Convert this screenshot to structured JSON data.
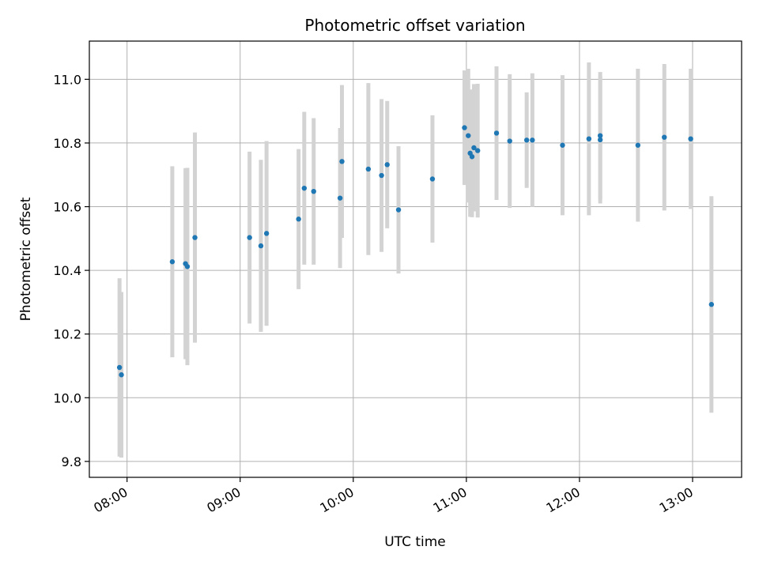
{
  "chart_data": {
    "type": "scatter",
    "title": "Photometric offset variation",
    "xlabel": "UTC time",
    "ylabel": "Photometric offset",
    "x_ticks": [
      "08:00",
      "09:00",
      "10:00",
      "11:00",
      "12:00",
      "13:00"
    ],
    "y_ticks": [
      "9.8",
      "10.0",
      "10.2",
      "10.4",
      "10.6",
      "10.8",
      "11.0"
    ],
    "xlim": [
      "07:40",
      "13:26"
    ],
    "ylim": [
      9.75,
      11.12
    ],
    "grid": true,
    "colors": {
      "points": "#1f77b4",
      "errorbars": "#d3d3d3",
      "grid": "#b0b0b0"
    },
    "points": [
      {
        "x": "07:56",
        "y": 10.095,
        "err": 0.28
      },
      {
        "x": "07:57",
        "y": 10.072,
        "err": 0.26
      },
      {
        "x": "08:24",
        "y": 10.427,
        "err": 0.3
      },
      {
        "x": "08:31",
        "y": 10.421,
        "err": 0.3
      },
      {
        "x": "08:32",
        "y": 10.412,
        "err": 0.31
      },
      {
        "x": "08:36",
        "y": 10.503,
        "err": 0.33
      },
      {
        "x": "09:05",
        "y": 10.503,
        "err": 0.27
      },
      {
        "x": "09:11",
        "y": 10.477,
        "err": 0.27
      },
      {
        "x": "09:14",
        "y": 10.516,
        "err": 0.29
      },
      {
        "x": "09:31",
        "y": 10.561,
        "err": 0.22
      },
      {
        "x": "09:34",
        "y": 10.658,
        "err": 0.24
      },
      {
        "x": "09:39",
        "y": 10.648,
        "err": 0.23
      },
      {
        "x": "09:53",
        "y": 10.627,
        "err": 0.22
      },
      {
        "x": "09:54",
        "y": 10.742,
        "err": 0.24
      },
      {
        "x": "10:08",
        "y": 10.718,
        "err": 0.27
      },
      {
        "x": "10:15",
        "y": 10.698,
        "err": 0.24
      },
      {
        "x": "10:18",
        "y": 10.732,
        "err": 0.2
      },
      {
        "x": "10:24",
        "y": 10.59,
        "err": 0.2
      },
      {
        "x": "10:42",
        "y": 10.687,
        "err": 0.2
      },
      {
        "x": "10:59",
        "y": 10.848,
        "err": 0.18
      },
      {
        "x": "11:01",
        "y": 10.823,
        "err": 0.21
      },
      {
        "x": "11:02",
        "y": 10.768,
        "err": 0.2
      },
      {
        "x": "11:03",
        "y": 10.757,
        "err": 0.19
      },
      {
        "x": "11:04",
        "y": 10.785,
        "err": 0.2
      },
      {
        "x": "11:06",
        "y": 10.776,
        "err": 0.21
      },
      {
        "x": "11:16",
        "y": 10.831,
        "err": 0.21
      },
      {
        "x": "11:23",
        "y": 10.806,
        "err": 0.21
      },
      {
        "x": "11:32",
        "y": 10.809,
        "err": 0.15
      },
      {
        "x": "11:35",
        "y": 10.809,
        "err": 0.21
      },
      {
        "x": "11:51",
        "y": 10.793,
        "err": 0.22
      },
      {
        "x": "12:05",
        "y": 10.813,
        "err": 0.24
      },
      {
        "x": "12:11",
        "y": 10.81,
        "err": 0.2
      },
      {
        "x": "12:11",
        "y": 10.823,
        "err": 0.2
      },
      {
        "x": "12:31",
        "y": 10.793,
        "err": 0.24
      },
      {
        "x": "12:45",
        "y": 10.818,
        "err": 0.23
      },
      {
        "x": "12:59",
        "y": 10.813,
        "err": 0.22
      },
      {
        "x": "13:10",
        "y": 10.293,
        "err": 0.34
      }
    ]
  }
}
